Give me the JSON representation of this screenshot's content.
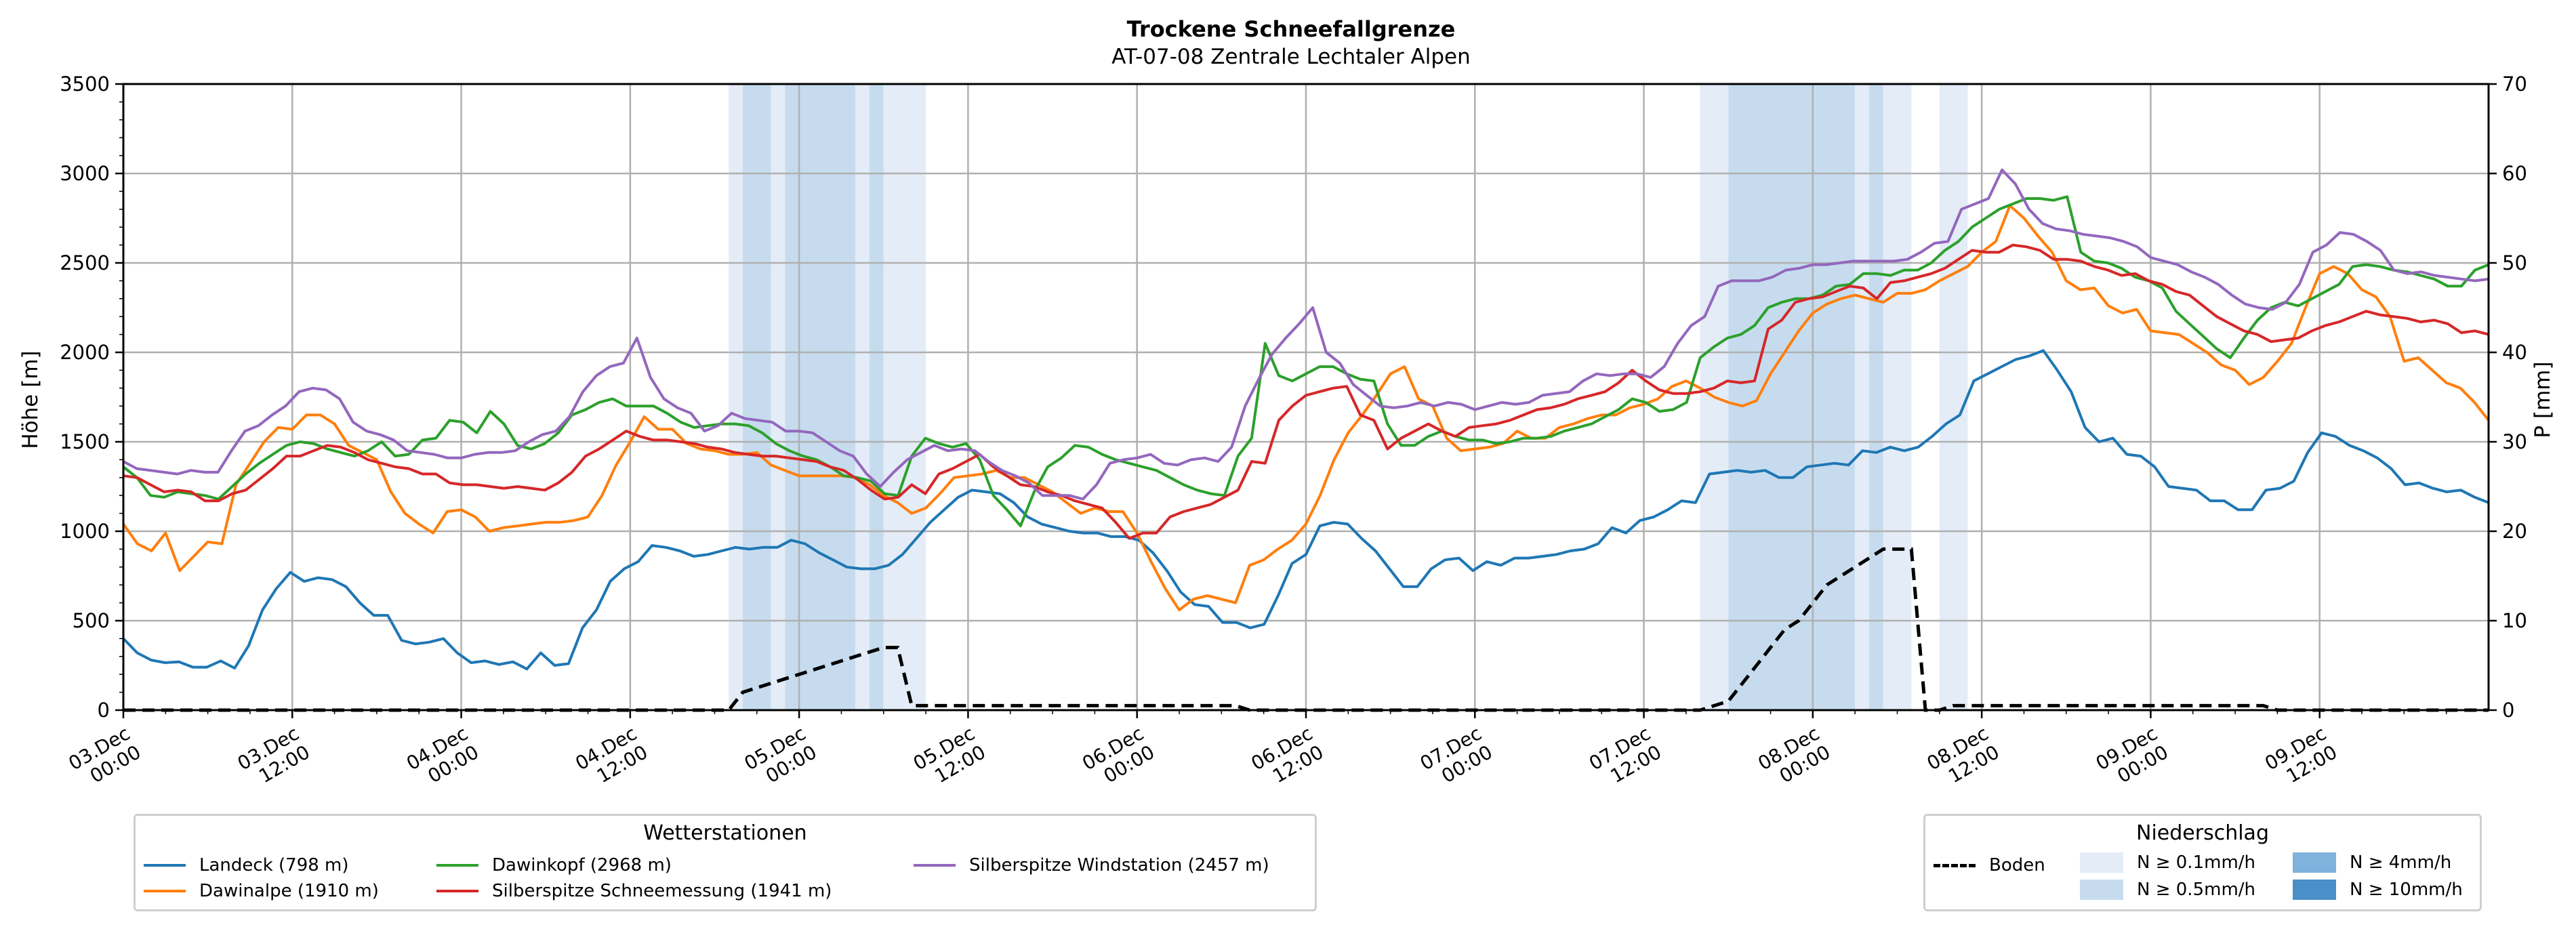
{
  "colors": {
    "landeck": "#1f77b4",
    "dawinalpe": "#ff7f0e",
    "dawinkopf": "#2ca02c",
    "silber_schnee": "#d62728",
    "silber_wind": "#9467bd",
    "boden": "#000000",
    "n01": "#e3ecf7",
    "n05": "#c6dcee",
    "n4": "#7fb2dc",
    "n10": "#4a8fc7",
    "grid": "#b0b0b0"
  },
  "chart_data": {
    "type": "line",
    "title": "Trockene Schneefallgrenze",
    "subtitle": "AT-07-08 Zentrale Lechtaler Alpen",
    "ylabel": "Höhe [m]",
    "y2label": "P [mm]",
    "ylim": [
      0,
      3500
    ],
    "y2lim": [
      0,
      70
    ],
    "yticks": [
      0,
      500,
      1000,
      1500,
      2000,
      2500,
      3000,
      3500
    ],
    "y2ticks": [
      0,
      10,
      20,
      30,
      40,
      50,
      60,
      70
    ],
    "x_hours_range": [
      0,
      168
    ],
    "xticks": [
      {
        "h": 0,
        "l1": "03.Dec",
        "l2": "00:00"
      },
      {
        "h": 12,
        "l1": "03.Dec",
        "l2": "12:00"
      },
      {
        "h": 24,
        "l1": "04.Dec",
        "l2": "00:00"
      },
      {
        "h": 36,
        "l1": "04.Dec",
        "l2": "12:00"
      },
      {
        "h": 48,
        "l1": "05.Dec",
        "l2": "00:00"
      },
      {
        "h": 60,
        "l1": "05.Dec",
        "l2": "12:00"
      },
      {
        "h": 72,
        "l1": "06.Dec",
        "l2": "00:00"
      },
      {
        "h": 84,
        "l1": "06.Dec",
        "l2": "12:00"
      },
      {
        "h": 96,
        "l1": "07.Dec",
        "l2": "00:00"
      },
      {
        "h": 108,
        "l1": "07.Dec",
        "l2": "12:00"
      },
      {
        "h": 120,
        "l1": "08.Dec",
        "l2": "00:00"
      },
      {
        "h": 132,
        "l1": "08.Dec",
        "l2": "12:00"
      },
      {
        "h": 144,
        "l1": "09.Dec",
        "l2": "00:00"
      },
      {
        "h": 156,
        "l1": "09.Dec",
        "l2": "12:00"
      }
    ],
    "grid": true,
    "precip_bands": [
      {
        "start": 43,
        "end": 44,
        "level": "n01"
      },
      {
        "start": 44,
        "end": 46,
        "level": "n05"
      },
      {
        "start": 46,
        "end": 47,
        "level": "n01"
      },
      {
        "start": 47,
        "end": 52,
        "level": "n05"
      },
      {
        "start": 52,
        "end": 53,
        "level": "n01"
      },
      {
        "start": 53,
        "end": 54,
        "level": "n05"
      },
      {
        "start": 54,
        "end": 57,
        "level": "n01"
      },
      {
        "start": 112,
        "end": 114,
        "level": "n01"
      },
      {
        "start": 114,
        "end": 123,
        "level": "n05"
      },
      {
        "start": 123,
        "end": 124,
        "level": "n01"
      },
      {
        "start": 124,
        "end": 125,
        "level": "n05"
      },
      {
        "start": 125,
        "end": 127,
        "level": "n01"
      },
      {
        "start": 129,
        "end": 131,
        "level": "n01"
      }
    ],
    "series": [
      {
        "name": "Landeck (798 m)",
        "color_key": "landeck",
        "values": [
          400,
          320,
          280,
          265,
          270,
          240,
          240,
          275,
          235,
          360,
          560,
          680,
          770,
          720,
          740,
          730,
          690,
          600,
          530,
          530,
          390,
          370,
          380,
          400,
          320,
          265,
          275,
          255,
          270,
          230,
          320,
          250,
          260,
          460,
          560,
          720,
          790,
          830,
          920,
          910,
          890,
          860,
          870,
          890,
          910,
          900,
          910,
          910,
          950,
          930,
          880,
          840,
          800,
          790,
          790,
          810,
          870,
          960,
          1050,
          1120,
          1190,
          1230,
          1220,
          1210,
          1160,
          1080,
          1040,
          1020,
          1000,
          990,
          990,
          970,
          970,
          950,
          880,
          780,
          660,
          590,
          580,
          490,
          490,
          460,
          480,
          640,
          820,
          870,
          1030,
          1050,
          1040,
          960,
          890,
          790,
          690,
          690,
          790,
          840,
          850,
          780,
          830,
          810,
          850,
          850,
          860,
          870,
          890,
          900,
          930,
          1020,
          990,
          1060,
          1080,
          1120,
          1170,
          1160,
          1320,
          1330,
          1340,
          1330,
          1340,
          1300,
          1300,
          1360,
          1370,
          1380,
          1370,
          1450,
          1440,
          1470,
          1450,
          1470,
          1530,
          1600,
          1650,
          1840,
          1880,
          1920,
          1960,
          1980,
          2010,
          1900,
          1780,
          1580,
          1500,
          1520,
          1430,
          1420,
          1360,
          1250,
          1240,
          1230,
          1170,
          1170,
          1120,
          1120,
          1230,
          1240,
          1280,
          1440,
          1550,
          1530,
          1480,
          1450,
          1410,
          1350,
          1260,
          1270,
          1240,
          1220,
          1230,
          1190,
          1160
        ]
      },
      {
        "name": "Dawinalpe (1910 m)",
        "color_key": "dawinalpe",
        "values": [
          1040,
          930,
          890,
          990,
          780,
          860,
          940,
          930,
          1260,
          1380,
          1500,
          1580,
          1570,
          1650,
          1650,
          1600,
          1480,
          1440,
          1400,
          1220,
          1100,
          1040,
          990,
          1110,
          1120,
          1080,
          1000,
          1020,
          1030,
          1040,
          1050,
          1050,
          1060,
          1080,
          1200,
          1370,
          1500,
          1640,
          1570,
          1570,
          1490,
          1460,
          1450,
          1430,
          1430,
          1440,
          1370,
          1340,
          1310,
          1310,
          1310,
          1310,
          1300,
          1260,
          1200,
          1160,
          1100,
          1130,
          1210,
          1300,
          1310,
          1320,
          1340,
          1300,
          1300,
          1260,
          1220,
          1160,
          1100,
          1130,
          1110,
          1110,
          990,
          830,
          680,
          560,
          620,
          640,
          620,
          600,
          810,
          840,
          900,
          950,
          1040,
          1200,
          1400,
          1550,
          1650,
          1760,
          1880,
          1920,
          1740,
          1700,
          1520,
          1450,
          1460,
          1470,
          1490,
          1560,
          1520,
          1520,
          1580,
          1600,
          1630,
          1650,
          1650,
          1690,
          1710,
          1740,
          1810,
          1840,
          1800,
          1750,
          1720,
          1700,
          1730,
          1880,
          2000,
          2120,
          2220,
          2270,
          2300,
          2320,
          2300,
          2280,
          2330,
          2330,
          2350,
          2400,
          2440,
          2480,
          2560,
          2620,
          2820,
          2750,
          2650,
          2560,
          2400,
          2350,
          2360,
          2260,
          2220,
          2240,
          2120,
          2110,
          2100,
          2050,
          2000,
          1930,
          1900,
          1820,
          1860,
          1950,
          2050,
          2250,
          2440,
          2480,
          2440,
          2350,
          2310,
          2200,
          1950,
          1970,
          1900,
          1830,
          1800,
          1720,
          1620
        ]
      },
      {
        "name": "Dawinkopf (2968 m)",
        "color_key": "dawinkopf",
        "values": [
          1360,
          1300,
          1200,
          1190,
          1220,
          1210,
          1200,
          1180,
          1250,
          1320,
          1380,
          1430,
          1480,
          1500,
          1490,
          1460,
          1440,
          1420,
          1450,
          1500,
          1420,
          1430,
          1510,
          1520,
          1620,
          1610,
          1550,
          1670,
          1600,
          1480,
          1460,
          1490,
          1550,
          1650,
          1680,
          1720,
          1740,
          1700,
          1700,
          1700,
          1660,
          1610,
          1580,
          1590,
          1600,
          1600,
          1590,
          1550,
          1490,
          1450,
          1420,
          1400,
          1360,
          1310,
          1300,
          1280,
          1210,
          1200,
          1420,
          1520,
          1490,
          1470,
          1490,
          1400,
          1200,
          1120,
          1030,
          1220,
          1360,
          1410,
          1480,
          1470,
          1430,
          1400,
          1380,
          1360,
          1340,
          1300,
          1260,
          1230,
          1210,
          1200,
          1420,
          1520,
          2050,
          1870,
          1840,
          1880,
          1920,
          1920,
          1880,
          1850,
          1840,
          1600,
          1480,
          1480,
          1530,
          1560,
          1530,
          1510,
          1510,
          1490,
          1500,
          1520,
          1520,
          1530,
          1560,
          1580,
          1600,
          1640,
          1680,
          1740,
          1720,
          1670,
          1680,
          1720,
          1970,
          2030,
          2080,
          2100,
          2150,
          2250,
          2280,
          2300,
          2300,
          2320,
          2370,
          2380,
          2440,
          2440,
          2430,
          2460,
          2460,
          2500,
          2570,
          2620,
          2700,
          2750,
          2800,
          2830,
          2860,
          2860,
          2850,
          2870,
          2560,
          2510,
          2500,
          2470,
          2420,
          2400,
          2360,
          2230,
          2160,
          2090,
          2020,
          1970,
          2080,
          2180,
          2250,
          2280,
          2260,
          2300,
          2340,
          2380,
          2480,
          2490,
          2480,
          2460,
          2450,
          2430,
          2410,
          2370,
          2370,
          2460,
          2490
        ]
      },
      {
        "name": "Silberspitze Schneemessung (1941 m)",
        "color_key": "silber_schnee",
        "values": [
          1310,
          1300,
          1260,
          1220,
          1230,
          1220,
          1170,
          1170,
          1210,
          1230,
          1290,
          1350,
          1420,
          1420,
          1450,
          1480,
          1470,
          1440,
          1400,
          1380,
          1360,
          1350,
          1320,
          1320,
          1270,
          1260,
          1260,
          1250,
          1240,
          1250,
          1240,
          1230,
          1270,
          1330,
          1420,
          1460,
          1510,
          1560,
          1530,
          1510,
          1510,
          1500,
          1490,
          1470,
          1460,
          1440,
          1430,
          1420,
          1420,
          1410,
          1400,
          1390,
          1360,
          1340,
          1290,
          1230,
          1180,
          1190,
          1260,
          1210,
          1320,
          1350,
          1390,
          1430,
          1360,
          1310,
          1260,
          1250,
          1220,
          1200,
          1170,
          1150,
          1130,
          1050,
          960,
          990,
          990,
          1080,
          1110,
          1130,
          1150,
          1190,
          1230,
          1390,
          1380,
          1620,
          1700,
          1760,
          1780,
          1800,
          1810,
          1650,
          1620,
          1460,
          1520,
          1560,
          1600,
          1560,
          1530,
          1580,
          1590,
          1600,
          1620,
          1650,
          1680,
          1690,
          1710,
          1740,
          1760,
          1780,
          1830,
          1900,
          1840,
          1790,
          1770,
          1770,
          1780,
          1800,
          1840,
          1830,
          1840,
          2130,
          2180,
          2280,
          2300,
          2310,
          2340,
          2370,
          2360,
          2300,
          2390,
          2400,
          2420,
          2440,
          2470,
          2520,
          2570,
          2560,
          2560,
          2600,
          2590,
          2570,
          2520,
          2520,
          2510,
          2480,
          2460,
          2430,
          2440,
          2400,
          2380,
          2340,
          2320,
          2260,
          2200,
          2160,
          2120,
          2100,
          2060,
          2070,
          2080,
          2120,
          2150,
          2170,
          2200,
          2230,
          2210,
          2200,
          2190,
          2170,
          2180,
          2160,
          2110,
          2120,
          2100
        ]
      },
      {
        "name": "Silberspitze Windstation (2457 m)",
        "color_key": "silber_wind",
        "values": [
          1390,
          1350,
          1340,
          1330,
          1320,
          1340,
          1330,
          1330,
          1450,
          1560,
          1590,
          1650,
          1700,
          1780,
          1800,
          1790,
          1740,
          1610,
          1560,
          1540,
          1510,
          1450,
          1440,
          1430,
          1410,
          1410,
          1430,
          1440,
          1440,
          1450,
          1500,
          1540,
          1560,
          1640,
          1780,
          1870,
          1920,
          1940,
          2080,
          1860,
          1740,
          1690,
          1660,
          1560,
          1590,
          1660,
          1630,
          1620,
          1610,
          1560,
          1560,
          1550,
          1500,
          1450,
          1420,
          1320,
          1250,
          1330,
          1400,
          1440,
          1480,
          1450,
          1460,
          1450,
          1390,
          1340,
          1310,
          1270,
          1200,
          1200,
          1200,
          1180,
          1260,
          1380,
          1400,
          1410,
          1430,
          1380,
          1370,
          1400,
          1410,
          1390,
          1470,
          1700,
          1850,
          1990,
          2080,
          2160,
          2250,
          2000,
          1940,
          1820,
          1760,
          1700,
          1690,
          1700,
          1720,
          1700,
          1720,
          1710,
          1680,
          1700,
          1720,
          1710,
          1720,
          1760,
          1770,
          1780,
          1840,
          1880,
          1870,
          1880,
          1880,
          1860,
          1920,
          2050,
          2150,
          2200,
          2370,
          2400,
          2400,
          2400,
          2420,
          2460,
          2470,
          2490,
          2490,
          2500,
          2510,
          2510,
          2510,
          2510,
          2520,
          2560,
          2610,
          2620,
          2800,
          2830,
          2860,
          3020,
          2940,
          2800,
          2720,
          2690,
          2680,
          2660,
          2650,
          2640,
          2620,
          2590,
          2530,
          2510,
          2490,
          2450,
          2420,
          2380,
          2320,
          2270,
          2250,
          2240,
          2280,
          2380,
          2560,
          2600,
          2670,
          2660,
          2620,
          2570,
          2460,
          2440,
          2450,
          2430,
          2420,
          2410,
          2400,
          2410
        ]
      }
    ],
    "boden": {
      "name": "Boden",
      "unit": "mm",
      "points": [
        [
          0,
          0
        ],
        [
          43,
          0
        ],
        [
          44,
          2
        ],
        [
          46,
          3
        ],
        [
          48,
          4
        ],
        [
          50,
          5
        ],
        [
          52,
          6
        ],
        [
          54,
          7
        ],
        [
          55,
          7
        ],
        [
          56,
          0.5
        ],
        [
          57,
          0.5
        ],
        [
          58,
          0.5
        ],
        [
          60,
          0.5
        ],
        [
          72,
          0.5
        ],
        [
          79,
          0.5
        ],
        [
          80,
          0
        ],
        [
          112,
          0
        ],
        [
          113,
          0.5
        ],
        [
          114,
          1
        ],
        [
          115,
          3
        ],
        [
          116,
          5
        ],
        [
          117,
          7
        ],
        [
          118,
          9
        ],
        [
          119,
          10
        ],
        [
          120,
          12
        ],
        [
          121,
          14
        ],
        [
          122,
          15
        ],
        [
          123,
          16
        ],
        [
          124,
          17
        ],
        [
          125,
          18
        ],
        [
          126,
          18
        ],
        [
          127,
          18
        ],
        [
          128,
          0
        ],
        [
          129,
          0
        ],
        [
          130,
          0.5
        ],
        [
          131,
          0.5
        ],
        [
          140,
          0.5
        ],
        [
          152,
          0.5
        ],
        [
          153,
          0
        ],
        [
          168,
          0
        ]
      ]
    },
    "legend_stations": {
      "title": "Wetterstationen",
      "items": [
        "Landeck (798 m)",
        "Dawinkopf (2968 m)",
        "Silberspitze Windstation (2457 m)",
        "Dawinalpe (1910 m)",
        "Silberspitze Schneemessung (1941 m)"
      ]
    },
    "legend_precip": {
      "title": "Niederschlag",
      "boden": "Boden",
      "n01": "N ≥ 0.1mm/h",
      "n05": "N ≥ 0.5mm/h",
      "n4": "N ≥ 4mm/h",
      "n10": "N ≥ 10mm/h"
    }
  }
}
